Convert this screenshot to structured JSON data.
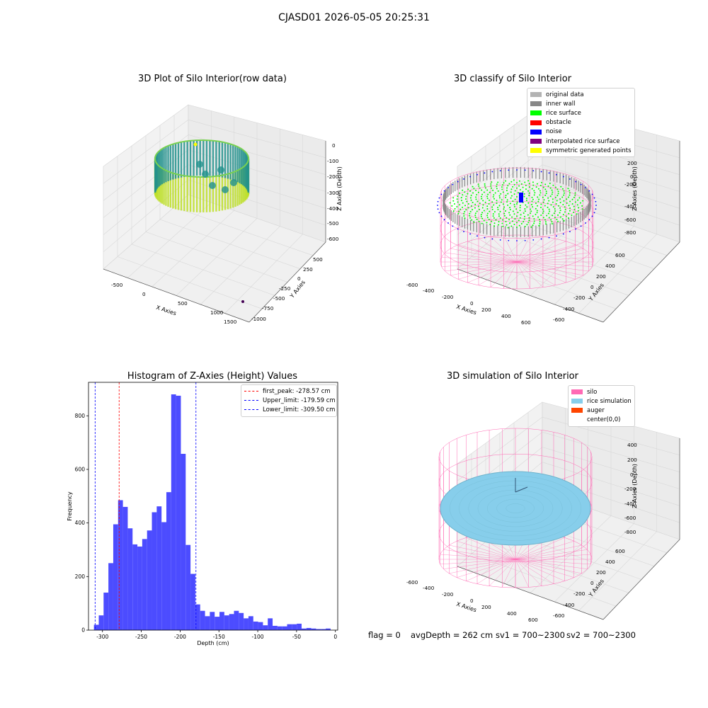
{
  "figure": {
    "suptitle": "CJASD01 2026-05-05 20:25:31",
    "footer": {
      "flag": "flag = 0",
      "avg_depth": "avgDepth = 262 cm",
      "sv1": "sv1 = 700~2300",
      "sv2": "sv2 = 700~2300"
    },
    "colors": {
      "histogram_bars": "#4c4cff",
      "rice_surface": "#00ff00",
      "noise": "#0000ff",
      "inner_wall": "#888888",
      "silo_wire": "#ff69b4",
      "rice_sim": "#87ceeb",
      "viridis_dark": "#440154",
      "viridis_mid": "#21918c",
      "viridis_light": "#bddf26",
      "symmetric_yellow": "#ffff00"
    }
  },
  "chart_data": [
    {
      "type": "scatter",
      "title": "3D Plot of Silo Interior(row data)",
      "xlabel": "X Axies",
      "ylabel": "Y Axies",
      "zlabel": "Z Axies (Depth)",
      "x_ticks": [
        "-500",
        "0",
        "500",
        "1000",
        "1500"
      ],
      "y_ticks": [
        "500",
        "250",
        "0",
        "-250",
        "-500",
        "-750",
        "-1000"
      ],
      "z_ticks": [
        "0",
        "-100",
        "-200",
        "-300",
        "-400",
        "-500",
        "-600"
      ],
      "colormap": "viridis"
    },
    {
      "type": "scatter",
      "title": "3D classify of Silo Interior",
      "xlabel": "X Axies",
      "ylabel": "Y Axies",
      "zlabel": "Z Axies (Depth)",
      "x_ticks": [
        "-600",
        "-400",
        "-200",
        "0",
        "200",
        "400",
        "600"
      ],
      "y_ticks": [
        "600",
        "400",
        "200",
        "0",
        "-200",
        "-400",
        "-600"
      ],
      "z_ticks": [
        "200",
        "0",
        "-200",
        "-400",
        "-600",
        "-800"
      ],
      "legend": {
        "position": "top-right",
        "entries": [
          {
            "label": "original data",
            "color": "#b3b3b3"
          },
          {
            "label": "inner wall",
            "color": "#888888"
          },
          {
            "label": "rice surface",
            "color": "#00ff00"
          },
          {
            "label": "obstacle",
            "color": "#ff0000"
          },
          {
            "label": "noise",
            "color": "#0000ff"
          },
          {
            "label": "interpolated rice surface",
            "color": "#800080"
          },
          {
            "label": "symmetric generated points",
            "color": "#ffff00"
          }
        ]
      }
    },
    {
      "type": "bar",
      "title": "Histogram of Z-Axies (Height) Values",
      "xlabel": "Depth (cm)",
      "ylabel": "Frequency",
      "xlim": [
        -318,
        3
      ],
      "ylim": [
        0,
        925
      ],
      "grid": false,
      "x_ticks": [
        -300,
        -250,
        -200,
        -150,
        -100,
        -50,
        0
      ],
      "y_ticks": [
        0,
        200,
        400,
        600,
        800
      ],
      "bins": {
        "start": -311,
        "width": 6.22,
        "counts": [
          20,
          55,
          140,
          250,
          395,
          485,
          460,
          380,
          320,
          312,
          340,
          372,
          440,
          462,
          403,
          515,
          880,
          875,
          658,
          318,
          210,
          96,
          72,
          52,
          68,
          50,
          68,
          55,
          60,
          72,
          64,
          44,
          52,
          32,
          30,
          18,
          44,
          16,
          14,
          14,
          22,
          22,
          24,
          6,
          8,
          6,
          4,
          4,
          6
        ]
      },
      "vlines": [
        {
          "x": -278.57,
          "label": "first_peak: -278.57 cm",
          "color": "#ff0000"
        },
        {
          "x": -179.59,
          "label": "Upper_limit: -179.59 cm",
          "color": "#0000ff"
        },
        {
          "x": -309.5,
          "label": "Lower_limit: -309.50 cm",
          "color": "#0000ff"
        }
      ],
      "legend": {
        "position": "top-right"
      }
    },
    {
      "type": "scatter",
      "title": "3D simulation of Silo Interior",
      "xlabel": "X Axies",
      "ylabel": "Y Axies",
      "zlabel": "Z Axies (Depth)",
      "x_ticks": [
        "-600",
        "-400",
        "-200",
        "0",
        "200",
        "400",
        "600"
      ],
      "y_ticks": [
        "600",
        "400",
        "200",
        "0",
        "-200",
        "-400",
        "-600"
      ],
      "z_ticks": [
        "400",
        "200",
        "0",
        "-200",
        "-400",
        "-600",
        "-800"
      ],
      "legend": {
        "position": "top-right",
        "entries": [
          {
            "label": "silo",
            "color": "#ff69b4"
          },
          {
            "label": "rice simulation",
            "color": "#87ceeb"
          },
          {
            "label": "auger",
            "color": "#ff4500"
          },
          {
            "label": "center(0,0)",
            "color": "#ffffff"
          }
        ]
      }
    }
  ]
}
